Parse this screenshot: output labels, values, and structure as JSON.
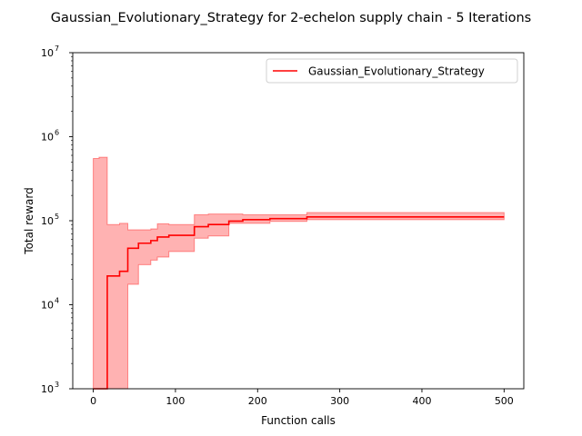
{
  "chart_data": {
    "type": "line",
    "title": "Gaussian_Evolutionary_Strategy for 2-echelon supply chain - 5 Iterations",
    "xlabel": "Function calls",
    "ylabel": "Total reward",
    "xlim": [
      -25,
      524
    ],
    "ylim": [
      1000,
      10000000
    ],
    "yscale": "log",
    "xticks": [
      0,
      100,
      200,
      300,
      400,
      500
    ],
    "xtick_labels": [
      "0",
      "100",
      "200",
      "300",
      "400",
      "500"
    ],
    "yticks": [
      1000,
      10000,
      100000,
      1000000,
      10000000
    ],
    "ytick_labels": [
      {
        "base": "10",
        "exp": "3"
      },
      {
        "base": "10",
        "exp": "4"
      },
      {
        "base": "10",
        "exp": "5"
      },
      {
        "base": "10",
        "exp": "6"
      },
      {
        "base": "10",
        "exp": "7"
      }
    ],
    "grid": false,
    "legend_position": "top-right",
    "series": [
      {
        "name": "Gaussian_Evolutionary_Strategy",
        "color": "#ff0000",
        "fill_color": "#ff0000",
        "fill_opacity": 0.3,
        "steps": [
          {
            "x": 0,
            "mean": 1000,
            "low": 1000,
            "high": 550000
          },
          {
            "x": 7,
            "mean": 1000,
            "low": 1000,
            "high": 570000
          },
          {
            "x": 17,
            "mean": 22000,
            "low": 1000,
            "high": 90000
          },
          {
            "x": 32,
            "mean": 25000,
            "low": 1000,
            "high": 93000
          },
          {
            "x": 42,
            "mean": 47000,
            "low": 17500,
            "high": 78000
          },
          {
            "x": 55,
            "mean": 54000,
            "low": 30000,
            "high": 78000
          },
          {
            "x": 70,
            "mean": 58000,
            "low": 34000,
            "high": 80000
          },
          {
            "x": 78,
            "mean": 64000,
            "low": 37000,
            "high": 92000
          },
          {
            "x": 92,
            "mean": 67000,
            "low": 43000,
            "high": 90000
          },
          {
            "x": 123,
            "mean": 85000,
            "low": 62000,
            "high": 118000
          },
          {
            "x": 140,
            "mean": 90000,
            "low": 66000,
            "high": 120000
          },
          {
            "x": 165,
            "mean": 99000,
            "low": 93000,
            "high": 120000
          },
          {
            "x": 182,
            "mean": 103000,
            "low": 93000,
            "high": 118000
          },
          {
            "x": 215,
            "mean": 106000,
            "low": 98000,
            "high": 118000
          },
          {
            "x": 260,
            "mean": 111000,
            "low": 103000,
            "high": 125000
          },
          {
            "x": 500,
            "mean": 111000,
            "low": 103000,
            "high": 125000
          }
        ]
      }
    ]
  }
}
